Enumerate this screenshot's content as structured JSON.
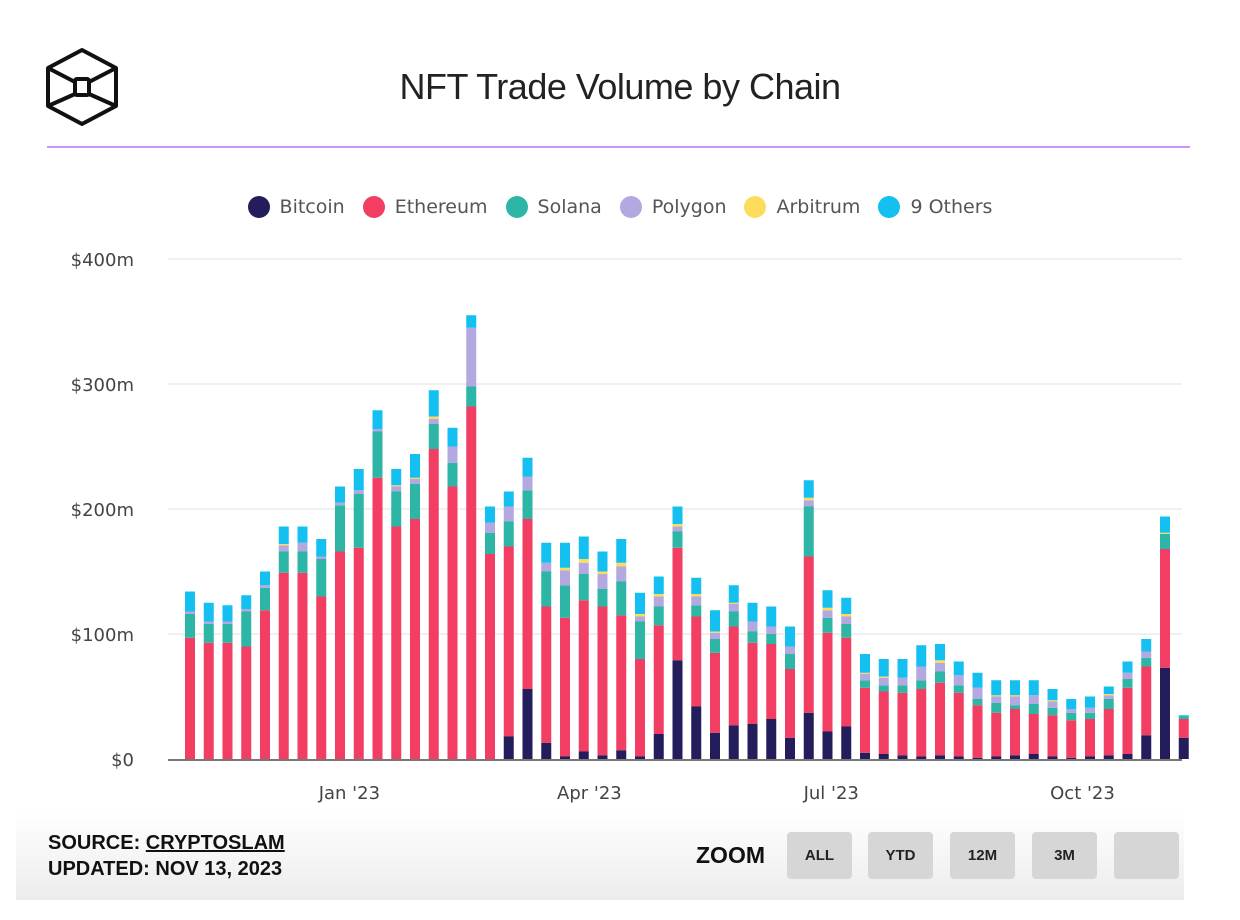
{
  "header": {
    "title": "NFT Trade Volume by Chain",
    "logo": "cube-logo-icon",
    "rule_color": "#c795f5"
  },
  "legend": [
    {
      "name": "Bitcoin",
      "color": "#231d5b"
    },
    {
      "name": "Ethereum",
      "color": "#f23e63"
    },
    {
      "name": "Solana",
      "color": "#2db5a5"
    },
    {
      "name": "Polygon",
      "color": "#b3a8e0"
    },
    {
      "name": "Arbitrum",
      "color": "#fddc5c"
    },
    {
      "name": "9 Others",
      "color": "#14c0ef"
    }
  ],
  "footer": {
    "source_prefix": "SOURCE: ",
    "source_link": "CRYPTOSLAM",
    "updated": "UPDATED: NOV 13, 2023",
    "zoom_label": "ZOOM",
    "zoom_buttons": [
      "ALL",
      "YTD",
      "12M",
      "3M",
      ""
    ]
  },
  "chart_data": {
    "type": "bar",
    "stacked": true,
    "title": "NFT Trade Volume by Chain",
    "xlabel": "",
    "ylabel": "",
    "ylim": [
      0,
      400
    ],
    "y_ticks": [
      0,
      100,
      200,
      300,
      400
    ],
    "y_tick_labels": [
      "$0",
      "$100m",
      "$200m",
      "$300m",
      "$400m"
    ],
    "x_tick_labels": [
      {
        "label": "Jan '23",
        "index": 8.5
      },
      {
        "label": "Apr '23",
        "index": 21.3
      },
      {
        "label": "Jul '23",
        "index": 34.2
      },
      {
        "label": "Oct '23",
        "index": 47.6
      }
    ],
    "grid": true,
    "legend_position": "top",
    "unit": "$m",
    "bar_count": 54,
    "series": [
      {
        "name": "Bitcoin",
        "color": "#231d5b",
        "values": [
          0,
          0,
          0,
          0,
          0,
          0,
          0,
          0,
          0,
          0,
          0,
          0,
          0,
          0,
          0,
          0,
          0,
          18,
          56,
          13,
          2,
          6,
          3,
          7,
          2,
          20,
          79,
          42,
          21,
          27,
          28,
          32,
          17,
          37,
          22,
          26,
          5,
          4,
          3,
          2,
          3,
          2,
          1,
          2,
          3,
          4,
          2,
          1,
          2,
          3,
          4,
          19,
          73,
          17
        ]
      },
      {
        "name": "Ethereum",
        "color": "#f23e63",
        "values": [
          97,
          93,
          93,
          90,
          119,
          149,
          149,
          130,
          166,
          169,
          225,
          186,
          192,
          248,
          218,
          282,
          164,
          152,
          136,
          109,
          111,
          121,
          119,
          108,
          78,
          87,
          90,
          72,
          64,
          79,
          65,
          60,
          55,
          125,
          79,
          71,
          52,
          50,
          50,
          54,
          58,
          51,
          42,
          35,
          37,
          32,
          33,
          30,
          30,
          37,
          53,
          55,
          95,
          15
        ]
      },
      {
        "name": "Solana",
        "color": "#2db5a5",
        "values": [
          19,
          15,
          15,
          28,
          18,
          17,
          17,
          30,
          37,
          43,
          37,
          28,
          28,
          20,
          19,
          16,
          17,
          20,
          23,
          28,
          26,
          21,
          14,
          27,
          30,
          15,
          13,
          9,
          11,
          12,
          9,
          8,
          12,
          40,
          12,
          11,
          6,
          5,
          6,
          7,
          9,
          6,
          5,
          8,
          3,
          8,
          6,
          6,
          5,
          8,
          7,
          7,
          12,
          2
        ]
      },
      {
        "name": "Polygon",
        "color": "#b3a8e0",
        "values": [
          2,
          2,
          2,
          2,
          2,
          5,
          7,
          2,
          2,
          3,
          2,
          4,
          4,
          4,
          13,
          47,
          8,
          12,
          11,
          7,
          12,
          9,
          12,
          12,
          4,
          8,
          4,
          7,
          5,
          6,
          8,
          6,
          6,
          5,
          6,
          6,
          5,
          6,
          6,
          11,
          7,
          8,
          9,
          5,
          7,
          7,
          5,
          3,
          4,
          3,
          5,
          5,
          0,
          0
        ]
      },
      {
        "name": "Arbitrum",
        "color": "#fddc5c",
        "values": [
          0,
          0,
          0,
          0,
          0,
          1,
          0,
          0,
          0,
          0,
          0,
          1,
          1,
          2,
          0,
          0,
          0,
          0,
          0,
          0,
          2,
          3,
          2,
          3,
          2,
          2,
          2,
          2,
          1,
          1,
          0,
          0,
          0,
          2,
          2,
          2,
          1,
          1,
          0,
          0,
          2,
          0,
          0,
          1,
          1,
          0,
          1,
          0,
          0,
          1,
          0,
          0,
          1,
          0
        ]
      },
      {
        "name": "9 Others",
        "color": "#14c0ef",
        "values": [
          16,
          15,
          13,
          11,
          11,
          14,
          13,
          14,
          13,
          17,
          15,
          13,
          19,
          21,
          15,
          10,
          13,
          12,
          15,
          16,
          20,
          18,
          16,
          19,
          17,
          14,
          14,
          13,
          17,
          14,
          15,
          16,
          16,
          14,
          14,
          13,
          15,
          14,
          15,
          17,
          13,
          11,
          12,
          12,
          12,
          12,
          9,
          8,
          9,
          6,
          9,
          10,
          13,
          1
        ]
      }
    ]
  }
}
